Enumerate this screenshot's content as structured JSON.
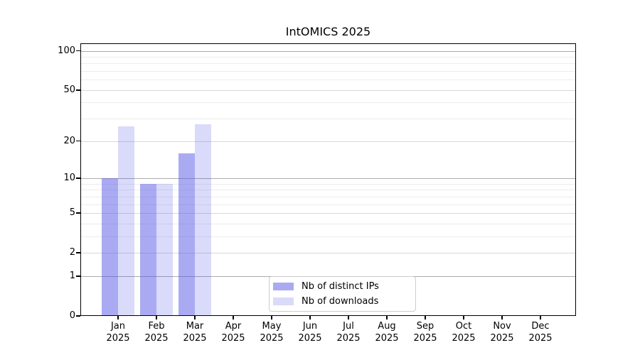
{
  "title": "IntOMICS 2025",
  "chart_data": {
    "type": "bar",
    "title": "IntOMICS 2025",
    "categories": [
      "Jan",
      "Feb",
      "Mar",
      "Apr",
      "May",
      "Jun",
      "Jul",
      "Aug",
      "Sep",
      "Oct",
      "Nov",
      "Dec"
    ],
    "category_year": "2025",
    "series": [
      {
        "name": "Nb of distinct IPs",
        "values": [
          10,
          9,
          16,
          0,
          0,
          0,
          0,
          0,
          0,
          0,
          0,
          0
        ],
        "color": "rgba(85,85,230,0.5)"
      },
      {
        "name": "Nb of downloads",
        "values": [
          26,
          9,
          27,
          0,
          0,
          0,
          0,
          0,
          0,
          0,
          0,
          0
        ],
        "color": "rgba(85,85,230,0.22)"
      }
    ],
    "y_scale": "log1p",
    "ylim": [
      0,
      113
    ],
    "y_ticks": [
      0,
      1,
      2,
      5,
      10,
      20,
      50,
      100
    ],
    "y_minor_gridlines": [
      3,
      4,
      6,
      7,
      8,
      9,
      30,
      40,
      60,
      70,
      80,
      90
    ],
    "grid": true,
    "legend_position": "lower center"
  },
  "legend": {
    "items": [
      {
        "label": "Nb of distinct IPs",
        "swatch_color": "rgba(85,85,230,0.5)"
      },
      {
        "label": "Nb of downloads",
        "swatch_color": "rgba(85,85,230,0.22)"
      }
    ]
  },
  "colors": {
    "background": "#ffffff",
    "axis": "#000000",
    "text": "#000000",
    "grid_decade": "#ababab",
    "grid_major": "#d8d8d8",
    "grid_minor": "#ececec",
    "legend_border": "#cccccc"
  }
}
